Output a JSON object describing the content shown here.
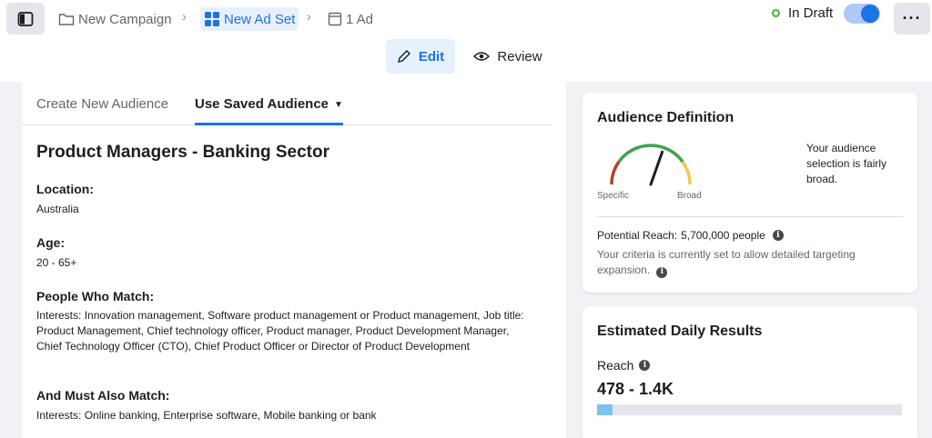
{
  "header": {
    "breadcrumbs": [
      "New Campaign",
      "New Ad Set",
      "1 Ad"
    ],
    "status": "In Draft",
    "status_color": "#42b72a",
    "accent": "#1b74e4"
  },
  "modes": {
    "edit": "Edit",
    "review": "Review"
  },
  "tabs": {
    "create": "Create New Audience",
    "saved": "Use Saved Audience"
  },
  "audience": {
    "title": "Product Managers - Banking Sector",
    "location_label": "Location:",
    "location": "Australia",
    "age_label": "Age:",
    "age": "20 - 65+",
    "people_label": "People Who Match:",
    "people": "Interests: Innovation management, Software product management or Product management, Job title: Product Management, Chief technology officer, Product manager, Product Development Manager, Chief Technology Officer (CTO), Chief Product Officer or Director of Product Development",
    "must_label": "And Must Also Match:",
    "must": "Interests: Online banking, Enterprise software, Mobile banking or bank"
  },
  "definition": {
    "title": "Audience Definition",
    "specific": "Specific",
    "broad": "Broad",
    "summary": "Your audience selection is fairly broad.",
    "reach_label": "Potential Reach:",
    "reach_value": "5,700,000 people",
    "criteria": "Your criteria is currently set to allow detailed targeting expansion.",
    "gauge_level": 0.62
  },
  "estimated": {
    "title": "Estimated Daily Results",
    "reach_label": "Reach",
    "reach_value": "478 - 1.4K",
    "bar_fraction": 0.05
  }
}
